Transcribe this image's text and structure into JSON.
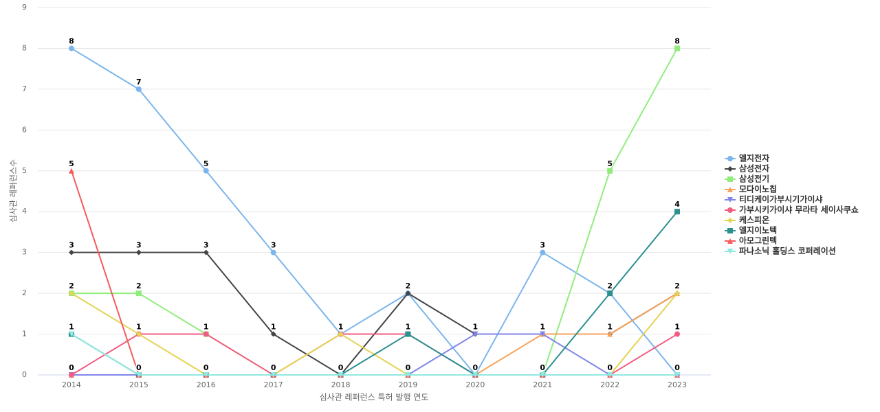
{
  "chart_data": {
    "type": "line",
    "x_label": "심사관 레퍼런스 특허 발행 연도",
    "y_label": "심사관 레퍼런스수",
    "categories": [
      "2014",
      "2015",
      "2016",
      "2017",
      "2018",
      "2019",
      "2020",
      "2021",
      "2022",
      "2023"
    ],
    "ylim": [
      0,
      9
    ],
    "yticks": [
      0,
      1,
      2,
      3,
      4,
      5,
      6,
      7,
      8,
      9
    ],
    "grid": true,
    "series": [
      {
        "name": "엘지전자",
        "color": "#7cb5ec",
        "marker": "circle",
        "values": [
          8,
          7,
          5,
          3,
          1,
          2,
          0,
          3,
          2,
          0
        ]
      },
      {
        "name": "삼성전자",
        "color": "#434348",
        "marker": "diamond",
        "values": [
          3,
          3,
          3,
          1,
          0,
          2,
          1,
          1,
          1,
          2
        ]
      },
      {
        "name": "삼성전기",
        "color": "#90ed7d",
        "marker": "square",
        "values": [
          2,
          2,
          1,
          0,
          0,
          0,
          0,
          0,
          5,
          8
        ]
      },
      {
        "name": "모다이노칩",
        "color": "#f7a35c",
        "marker": "triangle",
        "values": [
          0,
          0,
          0,
          0,
          0,
          0,
          0,
          1,
          1,
          2
        ]
      },
      {
        "name": "티디케이가부시기가이샤",
        "color": "#8085e9",
        "marker": "triangle-down",
        "values": [
          0,
          0,
          0,
          0,
          0,
          0,
          1,
          1,
          0,
          0
        ]
      },
      {
        "name": "가부시키가이샤 무라타 세이사쿠쇼",
        "color": "#f15c80",
        "marker": "circle",
        "values": [
          0,
          1,
          1,
          0,
          1,
          1,
          0,
          0,
          0,
          1
        ]
      },
      {
        "name": "케스피온",
        "color": "#e4d354",
        "marker": "diamond",
        "values": [
          2,
          1,
          0,
          0,
          1,
          0,
          0,
          0,
          0,
          2
        ]
      },
      {
        "name": "엘지이노텍",
        "color": "#2b908f",
        "marker": "square",
        "values": [
          1,
          0,
          0,
          0,
          0,
          1,
          0,
          0,
          2,
          4
        ]
      },
      {
        "name": "아모그린텍",
        "color": "#f45b5b",
        "marker": "triangle",
        "values": [
          5,
          0,
          0,
          0,
          0,
          0,
          0,
          0,
          0,
          0
        ]
      },
      {
        "name": "파나소닉 홀딩스 코퍼레이션",
        "color": "#91e8e1",
        "marker": "triangle-down",
        "values": [
          1,
          0,
          0,
          0,
          0,
          0,
          0,
          0,
          0,
          0
        ]
      }
    ]
  }
}
